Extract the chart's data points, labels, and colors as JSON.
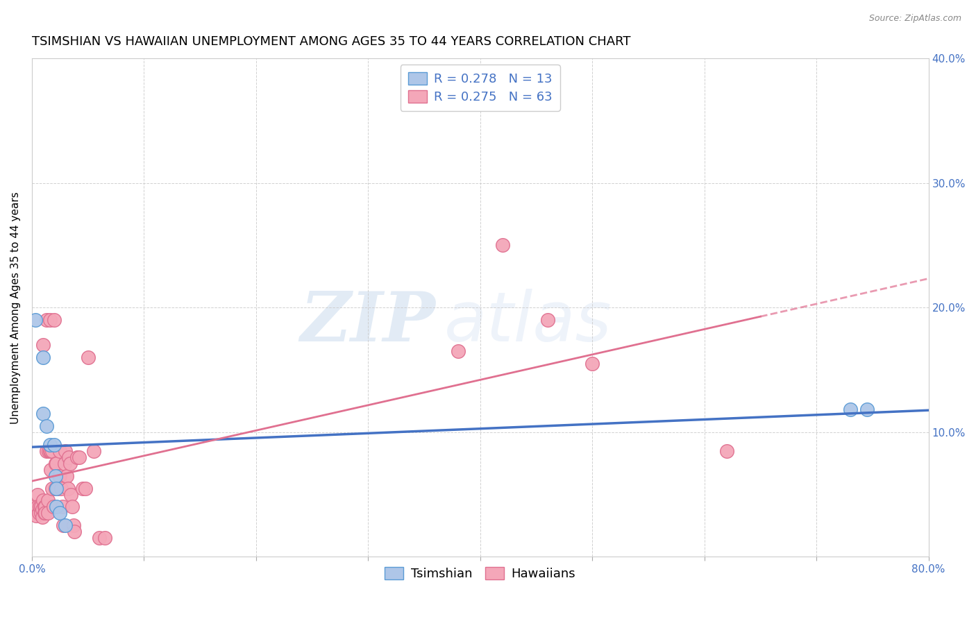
{
  "title": "TSIMSHIAN VS HAWAIIAN UNEMPLOYMENT AMONG AGES 35 TO 44 YEARS CORRELATION CHART",
  "source": "Source: ZipAtlas.com",
  "xlim": [
    0.0,
    0.8
  ],
  "ylim": [
    0.0,
    0.4
  ],
  "xlabel_ticks": [
    0.0,
    0.1,
    0.2,
    0.3,
    0.4,
    0.5,
    0.6,
    0.7,
    0.8
  ],
  "ylabel_ticks": [
    0.0,
    0.1,
    0.2,
    0.3,
    0.4
  ],
  "ylabel_labels": [
    "",
    "10.0%",
    "20.0%",
    "30.0%",
    "40.0%"
  ],
  "ylabel": "Unemployment Among Ages 35 to 44 years",
  "tsimshian_x": [
    0.003,
    0.01,
    0.01,
    0.013,
    0.016,
    0.02,
    0.021,
    0.022,
    0.022,
    0.025,
    0.03,
    0.73,
    0.745
  ],
  "tsimshian_y": [
    0.19,
    0.16,
    0.115,
    0.105,
    0.09,
    0.09,
    0.065,
    0.055,
    0.04,
    0.035,
    0.025,
    0.118,
    0.118
  ],
  "hawaiian_x": [
    0.002,
    0.003,
    0.004,
    0.005,
    0.005,
    0.006,
    0.007,
    0.008,
    0.008,
    0.009,
    0.009,
    0.01,
    0.01,
    0.011,
    0.011,
    0.012,
    0.012,
    0.013,
    0.013,
    0.014,
    0.014,
    0.015,
    0.016,
    0.016,
    0.017,
    0.017,
    0.018,
    0.018,
    0.019,
    0.02,
    0.021,
    0.021,
    0.022,
    0.023,
    0.024,
    0.025,
    0.025,
    0.026,
    0.027,
    0.028,
    0.029,
    0.03,
    0.031,
    0.032,
    0.033,
    0.034,
    0.035,
    0.036,
    0.037,
    0.038,
    0.04,
    0.042,
    0.045,
    0.048,
    0.05,
    0.055,
    0.06,
    0.065,
    0.38,
    0.42,
    0.46,
    0.5,
    0.62
  ],
  "hawaiian_y": [
    0.04,
    0.035,
    0.033,
    0.05,
    0.04,
    0.035,
    0.04,
    0.04,
    0.035,
    0.038,
    0.032,
    0.17,
    0.045,
    0.04,
    0.035,
    0.04,
    0.035,
    0.19,
    0.085,
    0.045,
    0.035,
    0.085,
    0.19,
    0.085,
    0.085,
    0.07,
    0.085,
    0.055,
    0.04,
    0.19,
    0.075,
    0.055,
    0.075,
    0.055,
    0.065,
    0.085,
    0.065,
    0.055,
    0.04,
    0.025,
    0.075,
    0.085,
    0.065,
    0.055,
    0.08,
    0.075,
    0.05,
    0.04,
    0.025,
    0.02,
    0.08,
    0.08,
    0.055,
    0.055,
    0.16,
    0.085,
    0.015,
    0.015,
    0.165,
    0.25,
    0.19,
    0.155,
    0.085
  ],
  "tsimshian_color": "#aec6e8",
  "hawaiian_color": "#f4a7b9",
  "tsimshian_edge": "#5b9bd5",
  "hawaiian_edge": "#e07090",
  "trend_tsimshian_color": "#4472c4",
  "trend_hawaiian_color": "#e07090",
  "trend_tsimshian_solid_end": 0.8,
  "trend_hawaiian_solid_end": 0.65,
  "trend_hawaiian_dash_start": 0.65,
  "trend_hawaiian_dash_end": 0.8,
  "legend_r_tsimshian": "R = 0.278",
  "legend_n_tsimshian": "N = 13",
  "legend_r_hawaiian": "R = 0.275",
  "legend_n_hawaiian": "N = 63",
  "watermark_zip": "ZIP",
  "watermark_atlas": "atlas",
  "axis_color": "#4472c4",
  "title_fontsize": 13,
  "tick_fontsize": 11,
  "ylabel_fontsize": 11,
  "source_fontsize": 9
}
